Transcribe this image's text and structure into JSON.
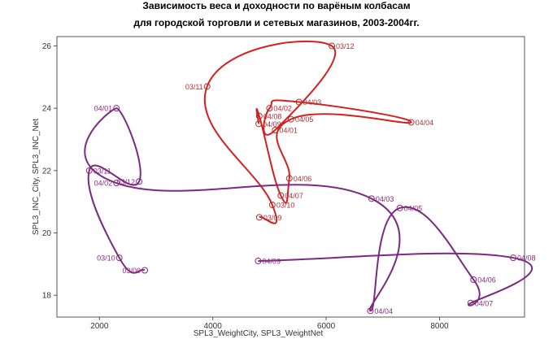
{
  "chart_data": {
    "type": "line",
    "title_line1": "Зависимость веса и доходности по варёным колбасам",
    "title_line2": "для городской торговли и сетевых магазинов, 2003-2004гг.",
    "xlabel": "SPL3_WeightCity, SPL3_WeightNet",
    "ylabel": "SPL3_INC_City, SPL3_INC_Net",
    "xlim": [
      1250,
      9500
    ],
    "ylim": [
      17.3,
      26.3
    ],
    "xticks": [
      2000,
      4000,
      6000,
      8000
    ],
    "yticks": [
      18,
      20,
      22,
      24,
      26
    ],
    "grid": false,
    "series": [
      {
        "color": "#d42020",
        "label_color": "#b03030",
        "points": [
          {
            "label": "03/09",
            "x": 4820,
            "y": 20.5
          },
          {
            "label": "03/10",
            "x": 5050,
            "y": 20.9
          },
          {
            "label": "03/11",
            "x": 3900,
            "y": 24.7
          },
          {
            "label": "03/12",
            "x": 6100,
            "y": 26.0
          },
          {
            "label": "04/01",
            "x": 5100,
            "y": 23.3
          },
          {
            "label": "04/02",
            "x": 5000,
            "y": 24.0
          },
          {
            "label": "04/03",
            "x": 5520,
            "y": 24.2
          },
          {
            "label": "04/04",
            "x": 7500,
            "y": 23.55
          },
          {
            "label": "04/05",
            "x": 5380,
            "y": 23.65
          },
          {
            "label": "04/06",
            "x": 5350,
            "y": 21.75
          },
          {
            "label": "04/07",
            "x": 5200,
            "y": 21.2
          },
          {
            "label": "04/08",
            "x": 4820,
            "y": 23.75
          },
          {
            "label": "04/09",
            "x": 4810,
            "y": 23.5
          }
        ],
        "order": [
          "03/09",
          "03/10",
          "03/11",
          "03/12",
          "04/01",
          "04/02",
          "04/03",
          "04/04",
          "04/05",
          "04/06",
          "04/07",
          "04/08",
          "04/09"
        ]
      },
      {
        "color": "#7a2a82",
        "label_color": "#8a2a7a",
        "points": [
          {
            "label": "03/09",
            "x": 2800,
            "y": 18.8
          },
          {
            "label": "03/10",
            "x": 2350,
            "y": 19.2
          },
          {
            "label": "03/11",
            "x": 1820,
            "y": 22.0
          },
          {
            "label": "03/12",
            "x": 2700,
            "y": 21.65
          },
          {
            "label": "04/01",
            "x": 2300,
            "y": 24.0
          },
          {
            "label": "04/02",
            "x": 2300,
            "y": 21.6
          },
          {
            "label": "04/03",
            "x": 6800,
            "y": 21.1
          },
          {
            "label": "04/04",
            "x": 6780,
            "y": 17.5
          },
          {
            "label": "04/05",
            "x": 7300,
            "y": 20.8
          },
          {
            "label": "04/06",
            "x": 8600,
            "y": 18.5
          },
          {
            "label": "04/07",
            "x": 8550,
            "y": 17.75
          },
          {
            "label": "04/08",
            "x": 9300,
            "y": 19.2
          },
          {
            "label": "04/09",
            "x": 4800,
            "y": 19.1
          }
        ],
        "order": [
          "03/09",
          "03/10",
          "03/11",
          "03/12",
          "04/01",
          "04/02",
          "04/03",
          "04/04",
          "04/05",
          "04/06",
          "04/07",
          "04/08",
          "04/09"
        ]
      }
    ]
  }
}
